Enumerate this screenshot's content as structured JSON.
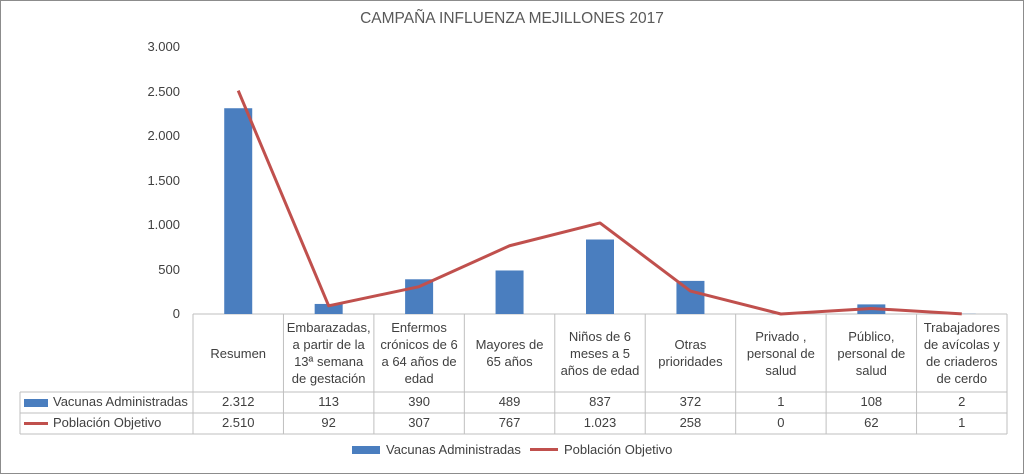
{
  "chart_data": {
    "type": "bar",
    "title": "CAMPAÑA INFLUENZA MEJILLONES 2017",
    "categories": [
      "Resumen",
      "Embarazadas, a partir de la 13ª semana de gestación",
      "Enfermos crónicos de 6 a 64 años de edad",
      "Mayores de 65 años",
      "Niños de 6 meses a 5 años de edad",
      "Otras prioridades",
      "Privado , personal de salud",
      "Público, personal de salud",
      "Trabajadores de avícolas y de criaderos de cerdo"
    ],
    "category_lines": [
      [
        "Resumen"
      ],
      [
        "Embarazadas,",
        "a partir de la",
        "13ª semana",
        "de gestación"
      ],
      [
        "Enfermos",
        "crónicos de 6",
        "a 64 años de",
        "edad"
      ],
      [
        "Mayores de",
        "65 años"
      ],
      [
        "Niños de 6",
        "meses a 5",
        "años de edad"
      ],
      [
        "Otras",
        "prioridades"
      ],
      [
        "Privado ,",
        "personal de",
        "salud"
      ],
      [
        "Público,",
        "personal de",
        "salud"
      ],
      [
        "Trabajadores",
        "de avícolas y",
        "de criaderos",
        "de cerdo"
      ]
    ],
    "series": [
      {
        "name": "Vacunas Administradas",
        "type": "bar",
        "color": "#4a7ebf",
        "values": [
          2312,
          113,
          390,
          489,
          837,
          372,
          1,
          108,
          2
        ],
        "labels": [
          "2.312",
          "113",
          "390",
          "489",
          "837",
          "372",
          "1",
          "108",
          "2"
        ]
      },
      {
        "name": "Población Objetivo",
        "type": "line",
        "color": "#c0504d",
        "values": [
          2510,
          92,
          307,
          767,
          1023,
          258,
          0,
          62,
          1
        ],
        "labels": [
          "2.510",
          "92",
          "307",
          "767",
          "1.023",
          "258",
          "0",
          "62",
          "1"
        ]
      }
    ],
    "ylim": [
      0,
      3000
    ],
    "yticks": [
      0,
      500,
      1000,
      1500,
      2000,
      2500,
      3000
    ],
    "ytick_labels": [
      "0",
      "500",
      "1.000",
      "1.500",
      "2.000",
      "2.500",
      "3.000"
    ],
    "grid": false,
    "data_table": true,
    "legend": "bottom"
  }
}
